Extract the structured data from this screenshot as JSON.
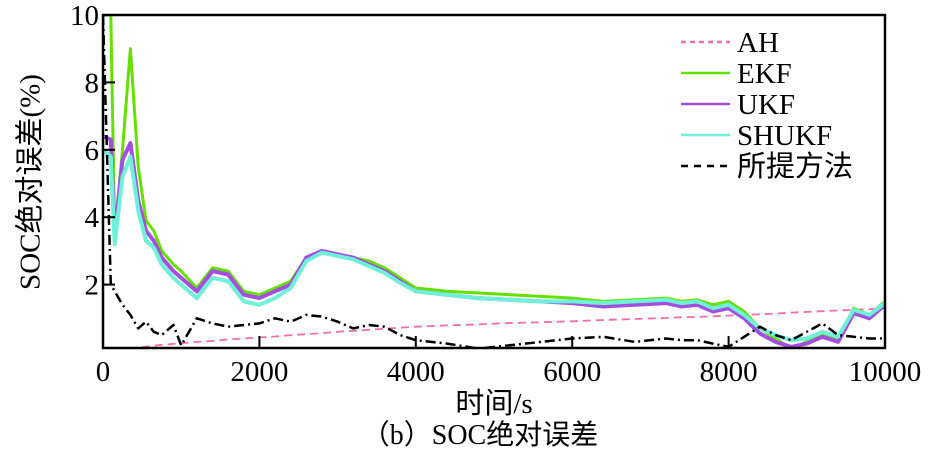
{
  "chart_data": {
    "type": "line",
    "title": "",
    "caption": "（b）SOC绝对误差",
    "xlabel": "时间/s",
    "ylabel": "SOC绝对误差(%)",
    "xlim": [
      0,
      10000
    ],
    "ylim": [
      0.1,
      10
    ],
    "xticks": [
      0,
      2000,
      4000,
      6000,
      8000,
      10000
    ],
    "yticks": [
      2,
      4,
      6,
      8,
      10
    ],
    "grid": false,
    "legend_position": "upper right",
    "x": [
      0,
      100,
      150,
      250,
      350,
      450,
      550,
      650,
      750,
      900,
      1000,
      1200,
      1400,
      1600,
      1800,
      2000,
      2200,
      2400,
      2600,
      2800,
      3000,
      3200,
      3400,
      3600,
      3800,
      4000,
      4400,
      4800,
      5200,
      5600,
      6000,
      6400,
      6800,
      7200,
      7400,
      7600,
      7800,
      8000,
      8200,
      8400,
      8600,
      8800,
      9000,
      9200,
      9400,
      9600,
      9800,
      10000
    ],
    "series": [
      {
        "name": "AH",
        "color": "#f06eaa",
        "style": "dashed",
        "values": [
          0.0,
          0.02,
          0.04,
          0.07,
          0.1,
          0.13,
          0.16,
          0.19,
          0.21,
          0.24,
          0.26,
          0.3,
          0.33,
          0.37,
          0.4,
          0.43,
          0.46,
          0.5,
          0.53,
          0.56,
          0.6,
          0.63,
          0.66,
          0.69,
          0.72,
          0.75,
          0.79,
          0.82,
          0.86,
          0.88,
          0.91,
          0.95,
          0.98,
          1.01,
          1.03,
          1.04,
          1.06,
          1.08,
          1.1,
          1.12,
          1.14,
          1.17,
          1.19,
          1.21,
          1.23,
          1.25,
          1.27,
          1.3
        ]
      },
      {
        "name": "EKF",
        "color": "#66e000",
        "style": "solid",
        "values": [
          10.0,
          10.0,
          3.5,
          6.0,
          9.0,
          5.5,
          3.9,
          3.6,
          3.0,
          2.6,
          2.4,
          1.9,
          2.5,
          2.4,
          1.8,
          1.7,
          1.9,
          2.1,
          2.8,
          3.0,
          2.9,
          2.8,
          2.7,
          2.5,
          2.2,
          1.9,
          1.8,
          1.75,
          1.7,
          1.65,
          1.6,
          1.5,
          1.55,
          1.6,
          1.5,
          1.55,
          1.4,
          1.5,
          1.2,
          0.7,
          0.4,
          0.1,
          0.3,
          0.5,
          0.35,
          1.3,
          1.1,
          1.5
        ]
      },
      {
        "name": "UKF",
        "color": "#a24fe0",
        "style": "solid",
        "values": [
          6.4,
          6.3,
          3.4,
          5.7,
          6.2,
          4.5,
          3.6,
          3.3,
          2.8,
          2.4,
          2.2,
          1.8,
          2.4,
          2.3,
          1.7,
          1.6,
          1.8,
          2.0,
          2.8,
          3.0,
          2.9,
          2.8,
          2.6,
          2.4,
          2.1,
          1.8,
          1.7,
          1.6,
          1.55,
          1.5,
          1.45,
          1.35,
          1.4,
          1.45,
          1.35,
          1.4,
          1.2,
          1.3,
          1.0,
          0.55,
          0.3,
          0.15,
          0.25,
          0.45,
          0.3,
          1.15,
          1.0,
          1.4
        ]
      },
      {
        "name": "SHUKF",
        "color": "#6ff0d8",
        "style": "solid",
        "values": [
          6.0,
          5.8,
          3.2,
          5.2,
          5.8,
          4.2,
          3.3,
          3.1,
          2.6,
          2.2,
          2.0,
          1.6,
          2.2,
          2.1,
          1.5,
          1.4,
          1.6,
          1.9,
          2.7,
          2.95,
          2.85,
          2.75,
          2.55,
          2.35,
          2.05,
          1.8,
          1.7,
          1.6,
          1.55,
          1.5,
          1.5,
          1.45,
          1.5,
          1.55,
          1.45,
          1.5,
          1.3,
          1.4,
          1.1,
          0.7,
          0.5,
          0.35,
          0.4,
          0.6,
          0.45,
          1.25,
          1.1,
          1.45
        ]
      },
      {
        "name": "所提方法",
        "color": "#000000",
        "style": "dashdot",
        "values": [
          10.0,
          2.0,
          1.8,
          1.4,
          1.1,
          0.7,
          0.9,
          0.6,
          0.5,
          0.8,
          0.2,
          1.0,
          0.85,
          0.75,
          0.8,
          0.85,
          1.0,
          0.9,
          1.1,
          1.05,
          0.9,
          0.7,
          0.8,
          0.75,
          0.5,
          0.35,
          0.25,
          0.1,
          0.2,
          0.3,
          0.4,
          0.45,
          0.3,
          0.4,
          0.35,
          0.35,
          0.25,
          0.15,
          0.45,
          0.75,
          0.5,
          0.35,
          0.6,
          0.85,
          0.5,
          0.45,
          0.4,
          0.4
        ]
      }
    ]
  },
  "labels": {
    "ylabel": "SOC绝对误差(%)",
    "xlabel": "时间/s",
    "caption": "（b）SOC绝对误差"
  }
}
